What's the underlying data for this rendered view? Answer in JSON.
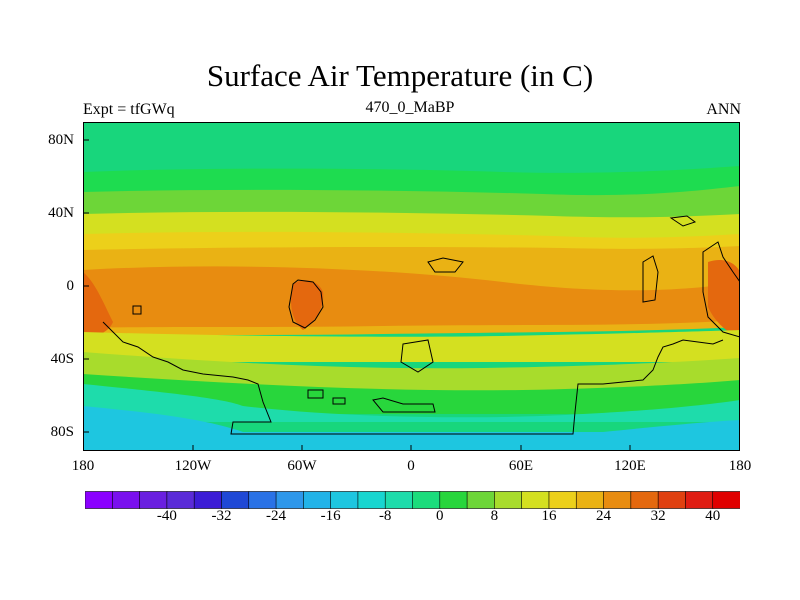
{
  "title": "Surface Air Temperature (in C)",
  "left_label": "Expt = tfGWq",
  "center_label": "470_0_MaBP",
  "right_label": "ANN",
  "y_ticks": [
    "80N",
    "40N",
    "0",
    "40S",
    "80S"
  ],
  "x_ticks": [
    "180",
    "120W",
    "60W",
    "0",
    "60E",
    "120E",
    "180"
  ],
  "colorbar": {
    "tick_labels": [
      "-40",
      "-32",
      "-24",
      "-16",
      "-8",
      "0",
      "8",
      "16",
      "24",
      "32",
      "40"
    ],
    "colors": [
      "#8b00ff",
      "#7a10ee",
      "#6a1fe0",
      "#5a2bd8",
      "#3c1cd6",
      "#1f48d6",
      "#2a72e6",
      "#2e97ea",
      "#22b3e8",
      "#1ec6e0",
      "#18d6d0",
      "#1edcab",
      "#1bdc7c",
      "#28d63c",
      "#6dd638",
      "#a8dc2c",
      "#d4e020",
      "#ecd01a",
      "#eab214",
      "#e88c10",
      "#e4680e",
      "#e04010",
      "#e01c12",
      "#e00000"
    ]
  },
  "map_colors": {
    "polar_north": "#18d67c",
    "north_mid": "#1edc50",
    "mid_north": "#6dd638",
    "subtrop": "#d4e020",
    "warm": "#ecd01a",
    "tropic": "#eab214",
    "tropic_hot": "#e88c10",
    "hot": "#e4680e",
    "south_mid": "#a8dc2c",
    "south_cool": "#28d63c",
    "south_cold": "#1edcab",
    "south_polar": "#1ec6e0"
  }
}
